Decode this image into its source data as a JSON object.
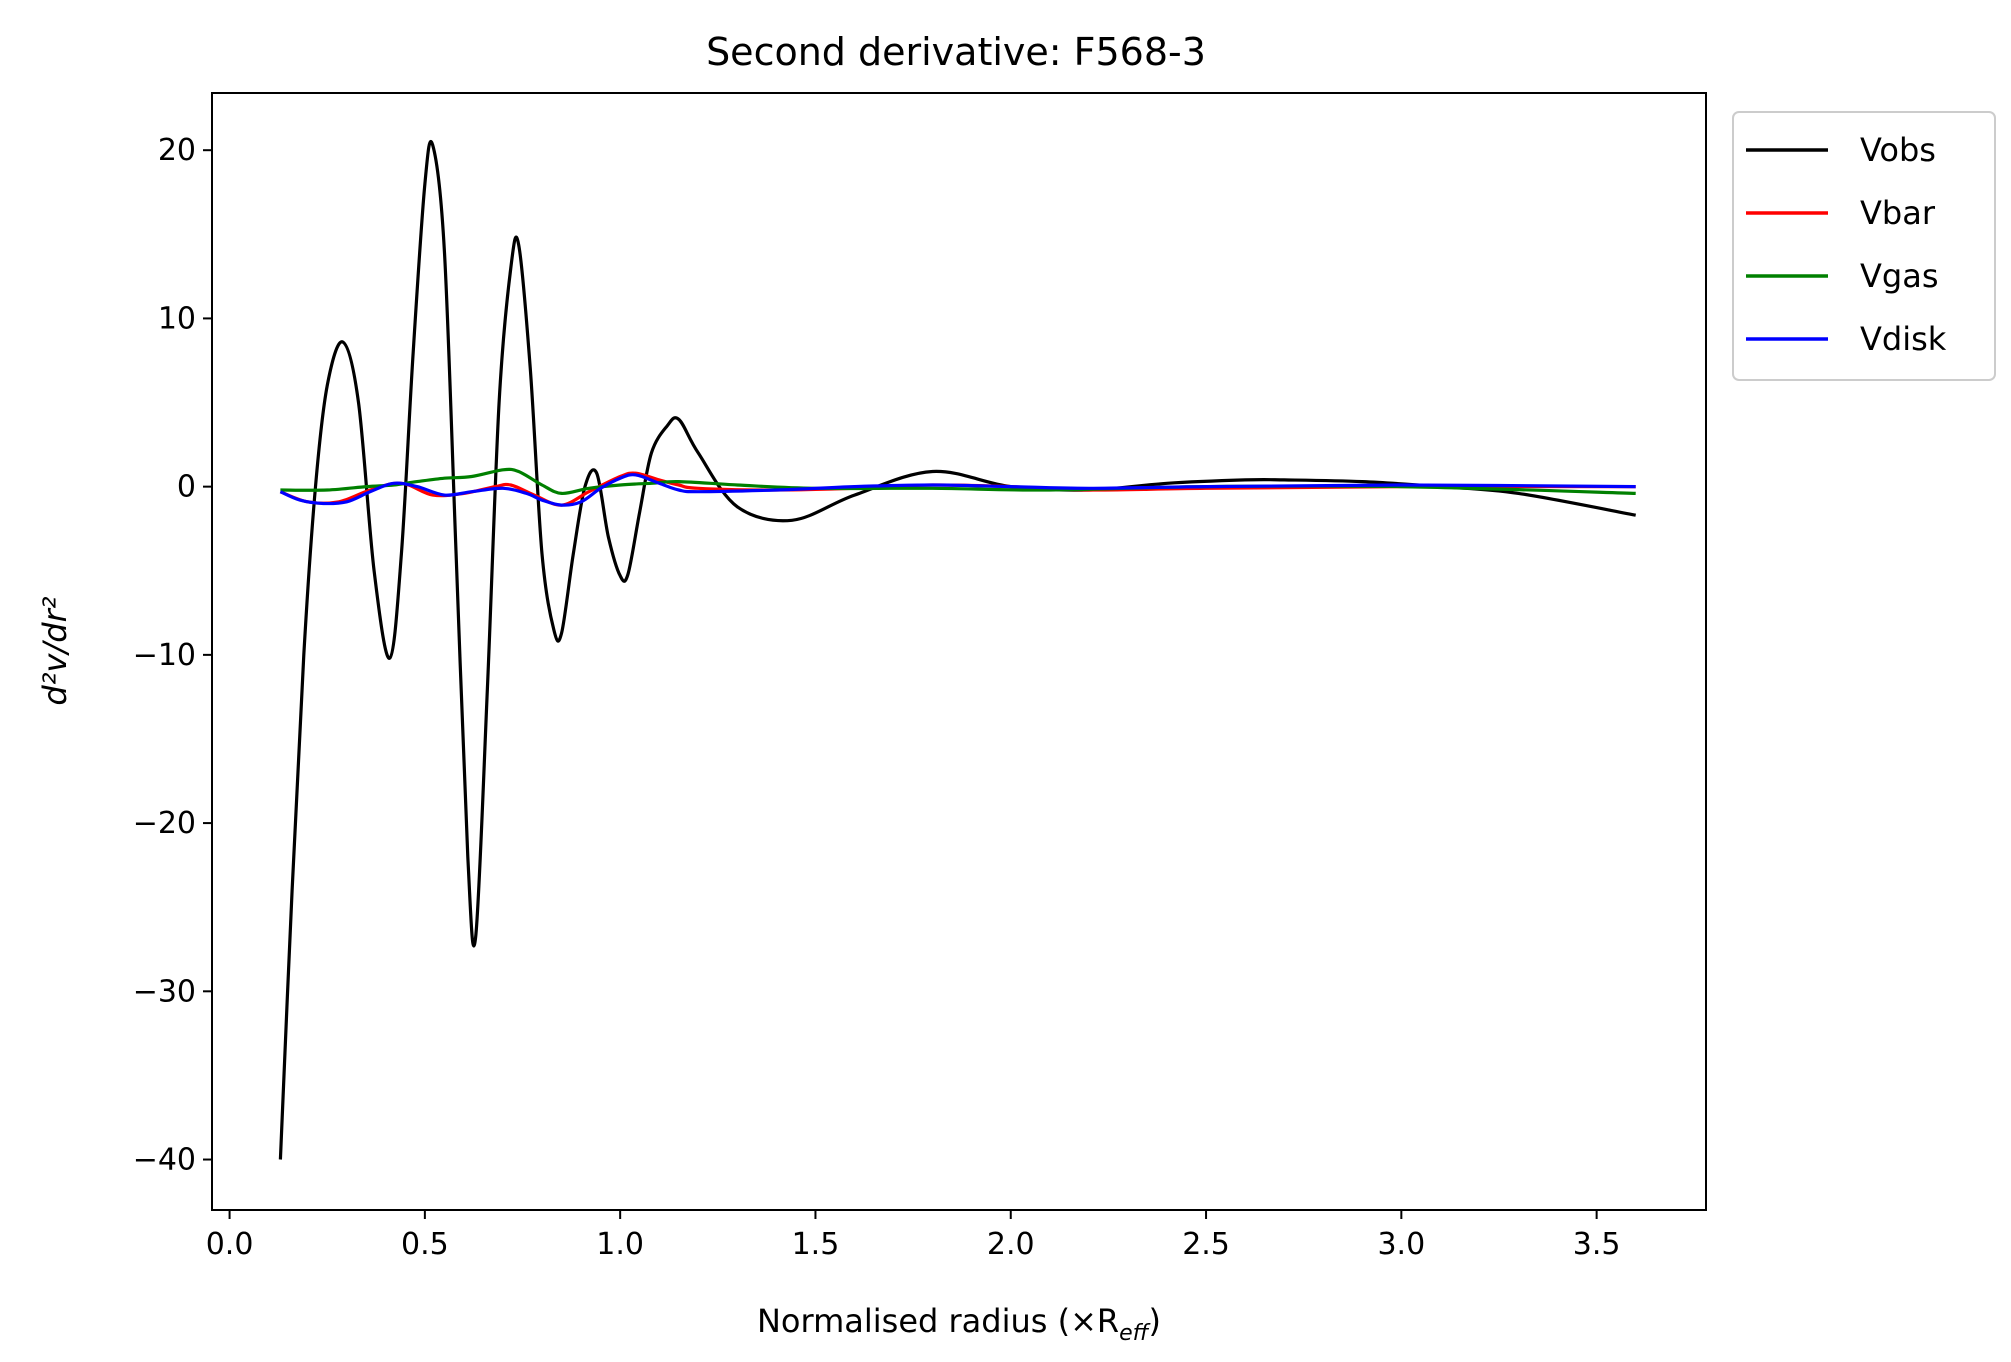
{
  "chart_data": {
    "type": "line",
    "title": "Second derivative: F568-3",
    "xlabel": "Normalised radius (×R",
    "xlabel_sub": "eff",
    "xlabel_close": ")",
    "ylabel": "d²v/dr²",
    "xlim": [
      -0.045,
      3.78
    ],
    "ylim": [
      -43.0,
      23.4
    ],
    "xticks": [
      0.0,
      0.5,
      1.0,
      1.5,
      2.0,
      2.5,
      3.0,
      3.5
    ],
    "xtick_labels": [
      "0.0",
      "0.5",
      "1.0",
      "1.5",
      "2.0",
      "2.5",
      "3.0",
      "3.5"
    ],
    "yticks": [
      20,
      10,
      0,
      -10,
      -20,
      -30,
      -40
    ],
    "ytick_labels": [
      "20",
      "10",
      "0",
      "−10",
      "−20",
      "−30",
      "−40"
    ],
    "grid": false,
    "legend_position": "outside-top-right",
    "series": [
      {
        "name": "Vobs",
        "color": "#000000",
        "x": [
          0.13,
          0.16,
          0.19,
          0.22,
          0.25,
          0.29,
          0.33,
          0.37,
          0.41,
          0.44,
          0.47,
          0.5,
          0.52,
          0.55,
          0.58,
          0.61,
          0.63,
          0.66,
          0.69,
          0.72,
          0.74,
          0.77,
          0.8,
          0.83,
          0.85,
          0.88,
          0.91,
          0.94,
          0.97,
          1.0,
          1.02,
          1.05,
          1.08,
          1.12,
          1.15,
          1.2,
          1.3,
          1.44,
          1.6,
          1.8,
          2.0,
          2.2,
          2.4,
          2.6,
          2.7,
          2.9,
          3.1,
          3.3,
          3.6
        ],
        "y": [
          -40,
          -24,
          -10,
          0,
          6,
          8.6,
          5,
          -5,
          -10.2,
          -4,
          8,
          18,
          20.3,
          14,
          -4,
          -22,
          -26.8,
          -12,
          5,
          13,
          14.4,
          7,
          -4,
          -8.5,
          -8.7,
          -4,
          0,
          0.8,
          -3,
          -5.3,
          -5.2,
          -1.5,
          2,
          3.6,
          4,
          2,
          -1.2,
          -2,
          -0.5,
          0.9,
          0,
          -0.2,
          0.2,
          0.4,
          0.4,
          0.3,
          0,
          -0.4,
          -1.7
        ]
      },
      {
        "name": "Vbar",
        "color": "#ff0000",
        "x": [
          0.13,
          0.2,
          0.28,
          0.36,
          0.44,
          0.52,
          0.6,
          0.68,
          0.72,
          0.78,
          0.85,
          0.92,
          1.0,
          1.04,
          1.1,
          1.15,
          1.2,
          1.4,
          1.6,
          1.8,
          2.0,
          2.2,
          2.5,
          3.0,
          3.6
        ],
        "y": [
          -0.3,
          -0.9,
          -0.9,
          -0.2,
          0.2,
          -0.5,
          -0.4,
          0,
          0.1,
          -0.5,
          -1.1,
          -0.3,
          0.6,
          0.8,
          0.4,
          0.1,
          -0.1,
          -0.2,
          -0.1,
          0.1,
          0,
          -0.2,
          -0.1,
          0,
          0
        ]
      },
      {
        "name": "Vgas",
        "color": "#008000",
        "x": [
          0.13,
          0.25,
          0.35,
          0.42,
          0.48,
          0.55,
          0.62,
          0.7,
          0.74,
          0.8,
          0.85,
          0.92,
          1.0,
          1.08,
          1.15,
          1.3,
          1.5,
          1.8,
          2.1,
          2.5,
          3.0,
          3.6
        ],
        "y": [
          -0.2,
          -0.2,
          0,
          0.1,
          0.3,
          0.5,
          0.6,
          1.0,
          0.9,
          0.1,
          -0.4,
          -0.1,
          0.1,
          0.2,
          0.3,
          0.1,
          -0.1,
          -0.1,
          -0.2,
          0,
          0,
          -0.4
        ]
      },
      {
        "name": "Vdisk",
        "color": "#0000ff",
        "x": [
          0.13,
          0.18,
          0.24,
          0.3,
          0.36,
          0.42,
          0.48,
          0.55,
          0.62,
          0.7,
          0.76,
          0.8,
          0.85,
          0.9,
          0.95,
          1.0,
          1.04,
          1.1,
          1.15,
          1.2,
          1.4,
          1.6,
          1.8,
          2.0,
          2.2,
          2.5,
          3.0,
          3.6
        ],
        "y": [
          -0.3,
          -0.8,
          -1.0,
          -0.9,
          -0.3,
          0.2,
          0,
          -0.5,
          -0.3,
          -0.1,
          -0.4,
          -0.8,
          -1.1,
          -0.9,
          -0.1,
          0.5,
          0.7,
          0.2,
          -0.2,
          -0.3,
          -0.2,
          0,
          0.1,
          0,
          -0.1,
          0,
          0.1,
          0
        ]
      }
    ]
  }
}
